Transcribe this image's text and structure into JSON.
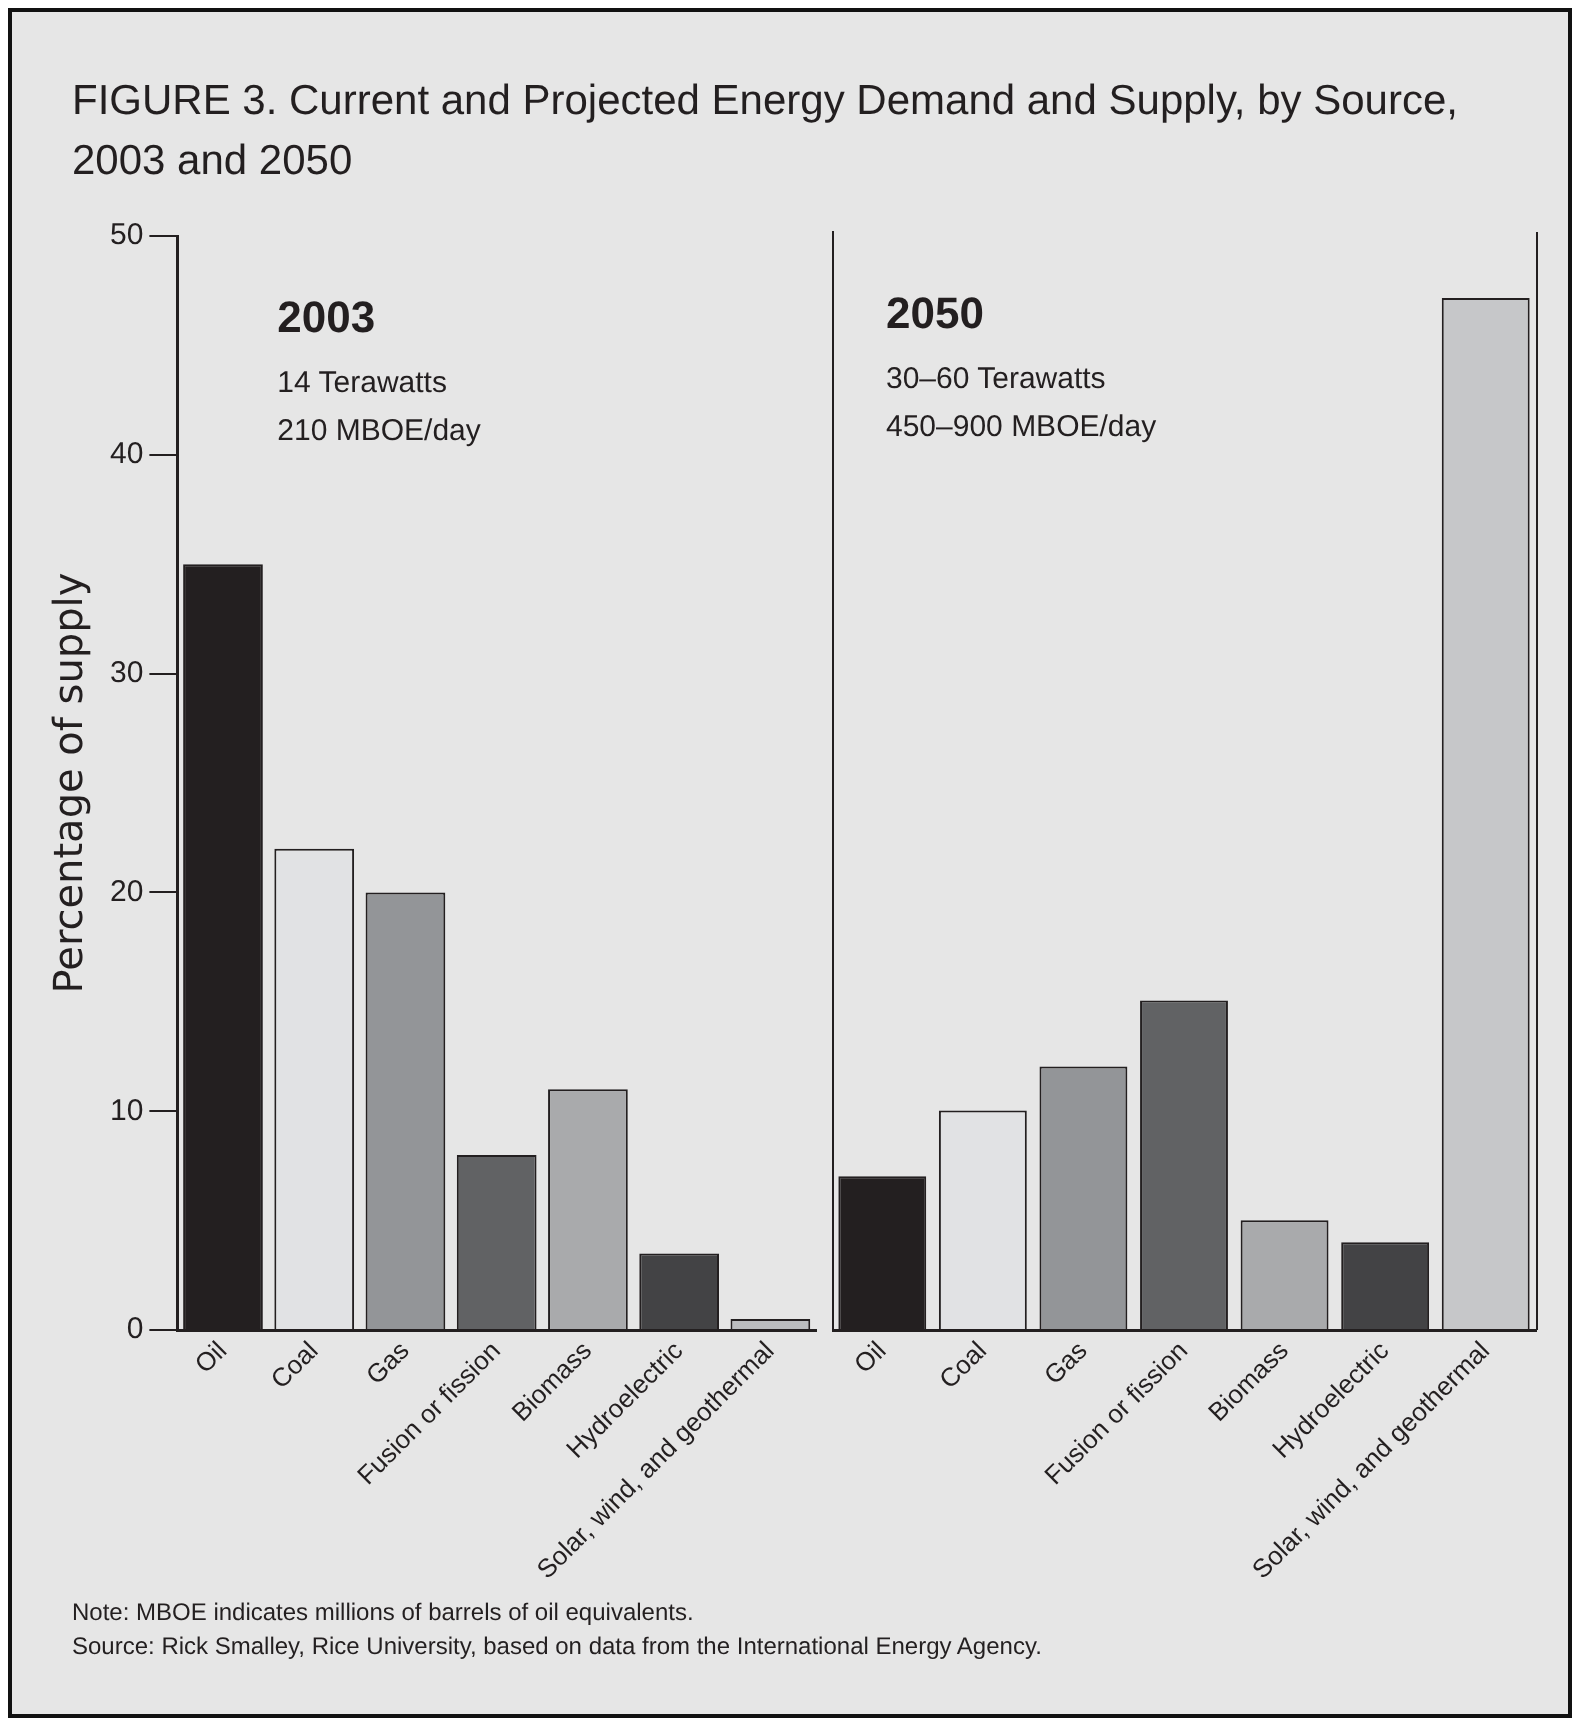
{
  "chart_data": [
    {
      "type": "bar",
      "title": "FIGURE 3. Current and Projected Energy Demand and Supply, by Source, 2003 and 2050",
      "ylabel": "Percentage of supply",
      "categories": [
        "Oil",
        "Coal",
        "Gas",
        "Fusion or fission",
        "Biomass",
        "Hydroelectric",
        "Solar, wind, and geothermal"
      ],
      "values": [
        35,
        22,
        20,
        8,
        11,
        3.5,
        0.5
      ],
      "colors": [
        "#231f20",
        "#e1e2e4",
        "#939598",
        "#616264",
        "#a9aaac",
        "#434345",
        "#bcbdbf"
      ],
      "ylim": [
        0,
        50
      ],
      "yticks": [
        0,
        10,
        20,
        30,
        40,
        50
      ],
      "grid": false,
      "annotations": [
        "2003",
        "14 Terawatts",
        "210 MBOE/day"
      ]
    },
    {
      "type": "bar",
      "categories": [
        "Oil",
        "Coal",
        "Gas",
        "Fusion or fission",
        "Biomass",
        "Hydroelectric",
        "Solar, wind, and geothermal"
      ],
      "values": [
        7,
        10,
        12,
        15,
        5,
        4,
        47
      ],
      "colors": [
        "#231f20",
        "#e1e2e4",
        "#939598",
        "#616264",
        "#a9aaac",
        "#434345",
        "#c6c7c9"
      ],
      "ylim": [
        0,
        50
      ],
      "yticks": [
        0,
        10,
        20,
        30,
        40,
        50
      ],
      "grid": false,
      "tick_labels": "x",
      "annotations": [
        "2050",
        "30–60 Terawatts",
        "450–900 MBOE/day",
        "Note: MBOE indicates millions of barrels of oil equivalents.",
        "Source: Rick Smalley, Rice University, based on data from the International Energy Agency."
      ]
    }
  ]
}
